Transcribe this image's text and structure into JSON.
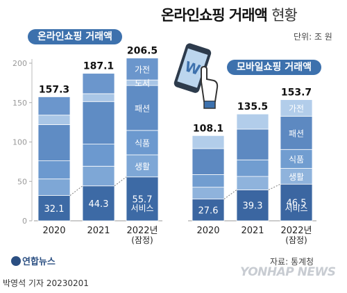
{
  "title": "온라인쇼핑 거래액",
  "title_suffix": "현황",
  "unit": "단위: 조 원",
  "source": "자료: 통계청",
  "credit": "박영석 기자  20230201",
  "logo": "연합뉴스",
  "watermark": "YONHAP NEWS",
  "colors": {
    "services": "#3d6aa5",
    "food": "#5f8bc2",
    "living": "#9fc0e2",
    "fashion": "#7aa1d0",
    "goods": "#5a86bf",
    "electronics": "#6a94c9",
    "pill": "#3d71ad"
  },
  "chart_data": [
    {
      "type": "bar",
      "title": "온라인쇼핑 거래액",
      "categories": [
        "2020",
        "2021",
        "2022년\n(잠정)"
      ],
      "totals": [
        157.3,
        187.1,
        206.5
      ],
      "total_labels": [
        "157.3",
        "187.1",
        "206.5"
      ],
      "series": [
        {
          "name": "서비스",
          "values": [
            32.1,
            44.3,
            55.7
          ]
        },
        {
          "name": "생활",
          "values": [
            21.0,
            25.0,
            28.0
          ]
        },
        {
          "name": "식품",
          "values": [
            23.0,
            28.0,
            31.0
          ]
        },
        {
          "name": "패션",
          "values": [
            46.0,
            54.0,
            57.0
          ]
        },
        {
          "name": "도서",
          "values": [
            12.0,
            10.0,
            7.0
          ]
        },
        {
          "name": "가전",
          "values": [
            23.2,
            25.8,
            27.8
          ]
        }
      ],
      "series_labels": [
        "가전",
        "도서",
        "패션",
        "식품",
        "생활",
        "서비스"
      ],
      "service_labels": [
        "32.1",
        "44.3",
        "55.7"
      ],
      "ylim": [
        0,
        200
      ],
      "yticks": [
        "0",
        "50",
        "100",
        "150",
        "200"
      ],
      "grid": false
    },
    {
      "type": "bar",
      "title": "모바일쇼핑 거래액",
      "categories": [
        "2020",
        "2021",
        "2022년\n(잠정)"
      ],
      "totals": [
        108.1,
        135.5,
        153.7
      ],
      "total_labels": [
        "108.1",
        "135.5",
        "153.7"
      ],
      "series": [
        {
          "name": "서비스",
          "values": [
            27.6,
            39.3,
            46.5
          ]
        },
        {
          "name": "생활",
          "values": [
            15.0,
            17.0,
            20.0
          ]
        },
        {
          "name": "식품",
          "values": [
            16.0,
            21.0,
            24.0
          ]
        },
        {
          "name": "패션",
          "values": [
            33.0,
            39.0,
            42.0
          ]
        },
        {
          "name": "가전",
          "values": [
            16.5,
            19.2,
            21.2
          ]
        }
      ],
      "series_labels": [
        "가전",
        "패션",
        "식품",
        "생활",
        "서비스"
      ],
      "service_labels": [
        "27.6",
        "39.3",
        "46.5"
      ],
      "ylim": [
        0,
        200
      ],
      "grid": false
    }
  ]
}
